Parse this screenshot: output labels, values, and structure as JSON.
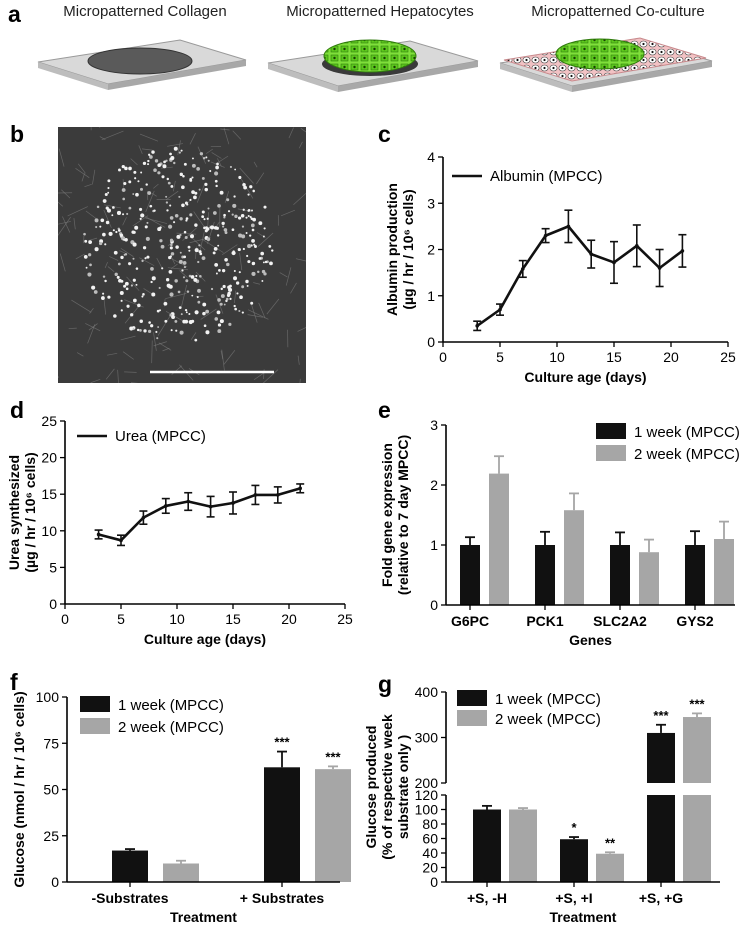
{
  "panel_a": {
    "letter": "a",
    "titles": [
      "Micropatterned Collagen",
      "Micropatterned Hepatocytes",
      "Micropatterned Co-culture"
    ]
  },
  "panel_b": {
    "letter": "b"
  },
  "chart_data": [
    {
      "id": "c",
      "letter": "c",
      "type": "line",
      "series": [
        {
          "name": "Albumin (MPCC)",
          "x": [
            3,
            5,
            7,
            9,
            11,
            13,
            15,
            17,
            19,
            21
          ],
          "y": [
            0.35,
            0.7,
            1.58,
            2.3,
            2.5,
            1.9,
            1.72,
            2.08,
            1.6,
            1.97
          ],
          "err": [
            0.1,
            0.12,
            0.18,
            0.15,
            0.35,
            0.3,
            0.45,
            0.45,
            0.4,
            0.35
          ]
        }
      ],
      "xlabel": "Culture age (days)",
      "ylabel_lines": [
        "Albumin production",
        "(µg / hr / 10⁶ cells)"
      ],
      "xlim": [
        0,
        25
      ],
      "ylim": [
        0,
        4
      ],
      "xticks": [
        "0",
        "5",
        "10",
        "15",
        "20",
        "25"
      ],
      "yticks": [
        "0",
        "1",
        "2",
        "3",
        "4"
      ]
    },
    {
      "id": "d",
      "letter": "d",
      "type": "line",
      "series": [
        {
          "name": "Urea (MPCC)",
          "x": [
            3,
            5,
            7,
            9,
            11,
            13,
            15,
            17,
            19,
            21
          ],
          "y": [
            9.5,
            8.7,
            11.8,
            13.4,
            14.0,
            13.3,
            13.8,
            14.9,
            14.9,
            15.8
          ],
          "err": [
            0.6,
            0.7,
            0.9,
            1.0,
            1.2,
            1.4,
            1.5,
            1.3,
            1.1,
            0.6
          ]
        }
      ],
      "xlabel": "Culture age (days)",
      "ylabel_lines": [
        "Urea synthesized",
        "(µg / hr / 10⁶ cells)"
      ],
      "xlim": [
        0,
        25
      ],
      "ylim": [
        0,
        25
      ],
      "xticks": [
        "0",
        "5",
        "10",
        "15",
        "20",
        "25"
      ],
      "yticks": [
        "0",
        "5",
        "10",
        "15",
        "20",
        "25"
      ]
    },
    {
      "id": "e",
      "letter": "e",
      "type": "bar",
      "categories": [
        "G6PC",
        "PCK1",
        "SLC2A2",
        "GYS2"
      ],
      "series": [
        {
          "name": "1 week (MPCC)",
          "color": "#111111",
          "values": [
            1.0,
            1.0,
            1.0,
            1.0
          ],
          "err": [
            0.13,
            0.22,
            0.21,
            0.23
          ]
        },
        {
          "name": "2 week (MPCC)",
          "color": "#a6a6a6",
          "values": [
            2.19,
            1.58,
            0.88,
            1.1
          ],
          "err": [
            0.29,
            0.28,
            0.21,
            0.29
          ]
        }
      ],
      "xlabel": "Genes",
      "ylabel_lines": [
        "Fold gene expression",
        "(relative to 7 day MPCC)"
      ],
      "ylim": [
        0,
        3
      ],
      "yticks": [
        "0",
        "1",
        "2",
        "3"
      ]
    },
    {
      "id": "f",
      "letter": "f",
      "type": "bar",
      "categories": [
        "-Substrates",
        "+ Substrates"
      ],
      "series": [
        {
          "name": "1 week (MPCC)",
          "color": "#111111",
          "values": [
            17,
            62
          ],
          "err": [
            0.8,
            8.5
          ],
          "sig": [
            "",
            "***"
          ]
        },
        {
          "name": "2 week (MPCC)",
          "color": "#a6a6a6",
          "values": [
            10,
            61
          ],
          "err": [
            1.5,
            1.5
          ],
          "sig": [
            "",
            "***"
          ]
        }
      ],
      "xlabel": "Treatment",
      "ylabel_lines": [
        "Glucose (nmol / hr / 10⁶ cells)"
      ],
      "ylim": [
        0,
        100
      ],
      "yticks": [
        "0",
        "25",
        "50",
        "75",
        "100"
      ]
    },
    {
      "id": "g",
      "letter": "g",
      "type": "bar",
      "categories": [
        "+S, -H",
        "+S, +I",
        "+S, +G"
      ],
      "series": [
        {
          "name": "1 week (MPCC)",
          "color": "#111111",
          "values": [
            100,
            59,
            310
          ],
          "err": [
            5,
            3,
            18
          ],
          "sig": [
            "",
            "*",
            "***"
          ]
        },
        {
          "name": "2 week (MPCC)",
          "color": "#a6a6a6",
          "values": [
            100,
            39,
            345
          ],
          "err": [
            2,
            2,
            8
          ],
          "sig": [
            "",
            "**",
            "***"
          ]
        }
      ],
      "xlabel": "Treatment",
      "ylabel_lines": [
        "Glucose produced",
        "(% of  respective week",
        "substrate only )"
      ],
      "broken_axis": {
        "lower": [
          0,
          120
        ],
        "upper": [
          200,
          400
        ]
      },
      "yticks_lower": [
        "0",
        "20",
        "40",
        "60",
        "80",
        "100",
        "120"
      ],
      "yticks_upper": [
        "200",
        "300",
        "400"
      ]
    }
  ]
}
